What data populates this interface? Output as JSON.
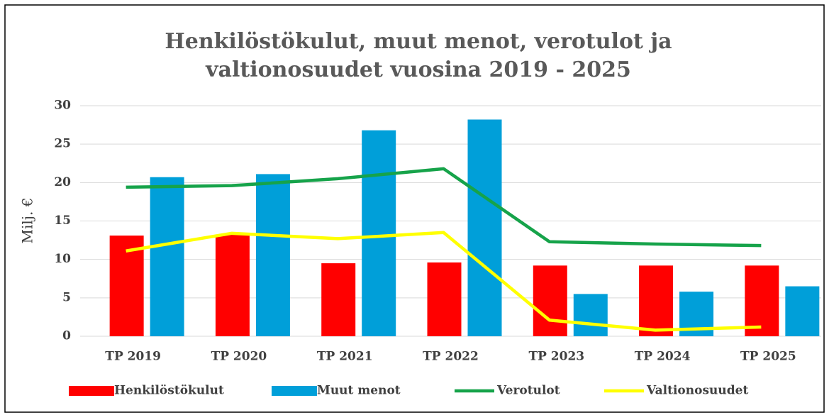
{
  "chart_data": {
    "type": "bar",
    "title": [
      "Henkilöstökulut, muut menot, verotulot ja",
      "valtionosuudet vuosina 2019 - 2025"
    ],
    "y_label": "Milj. €",
    "categories": [
      "TP 2019",
      "TP 2020",
      "TP 2021",
      "TP 2022",
      "TP 2023",
      "TP 2024",
      "TP 2025"
    ],
    "series": [
      {
        "name": "Henkilöstökulut",
        "type": "bar",
        "color": "#ff0000",
        "values": [
          13.1,
          13.2,
          9.5,
          9.6,
          9.2,
          9.2,
          9.2
        ]
      },
      {
        "name": "Muut menot",
        "type": "bar",
        "color": "#009fd9",
        "values": [
          20.7,
          21.1,
          26.8,
          28.2,
          5.5,
          5.8,
          6.5
        ]
      },
      {
        "name": "Verotulot",
        "type": "line",
        "color": "#16a34a",
        "values": [
          19.4,
          19.6,
          20.5,
          21.8,
          12.3,
          12.0,
          11.8
        ]
      },
      {
        "name": "Valtionosuudet",
        "type": "line",
        "color": "#ffff00",
        "values": [
          11.1,
          13.4,
          12.7,
          13.5,
          2.1,
          0.8,
          1.2
        ]
      }
    ],
    "ylim": [
      0,
      30
    ],
    "yticks": [
      0,
      5,
      10,
      15,
      20,
      25,
      30
    ],
    "grid": true,
    "legend": "bottom"
  }
}
